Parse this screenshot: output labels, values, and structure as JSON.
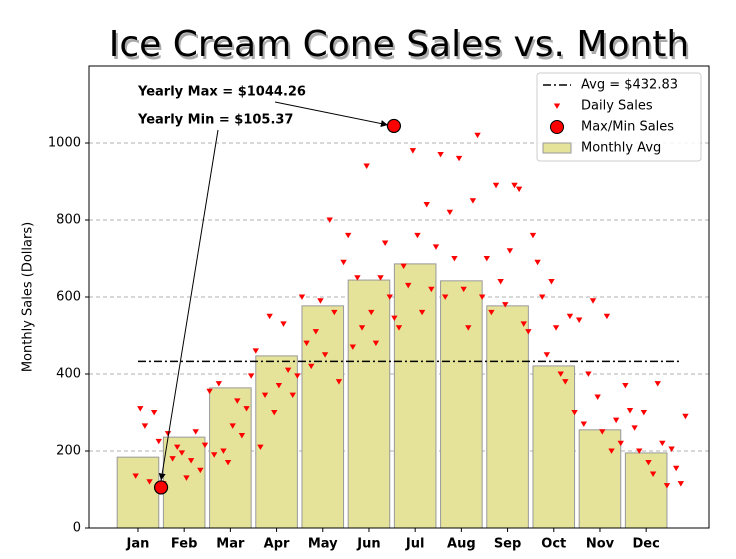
{
  "chart_data": {
    "type": "bar",
    "title": "Ice Cream Cone Sales vs. Month",
    "y_label": "Monthly Sales (Dollars)",
    "xlim": [
      -0.06,
      13.36
    ],
    "xticks": [
      {
        "value": 1,
        "label": "Jan"
      },
      {
        "value": 2,
        "label": "Feb"
      },
      {
        "value": 3,
        "label": "Mar"
      },
      {
        "value": 4,
        "label": "Apr"
      },
      {
        "value": 5,
        "label": "May"
      },
      {
        "value": 6,
        "label": "Jun"
      },
      {
        "value": 7,
        "label": "Jul"
      },
      {
        "value": 8,
        "label": "Aug"
      },
      {
        "value": 9,
        "label": "Sep"
      },
      {
        "value": 10,
        "label": "Oct"
      },
      {
        "value": 11,
        "label": "Nov"
      },
      {
        "value": 12,
        "label": "Dec"
      }
    ],
    "ylim": [
      0,
      1200
    ],
    "yticks": [
      0,
      200,
      400,
      600,
      800,
      1000
    ],
    "grid": true,
    "legend": "upper right",
    "series": [
      {
        "name": "Monthly Avg",
        "color": "#e5e39a",
        "x": [
          1,
          2,
          3,
          4,
          5,
          6,
          7,
          8,
          9,
          10,
          11,
          12
        ],
        "values": [
          184,
          236,
          364,
          447,
          577,
          644,
          686,
          642,
          577,
          421,
          255,
          195
        ]
      }
    ],
    "average": {
      "name": "Avg = $432.83",
      "value": 432.83,
      "x": [
        1,
        12.73
      ]
    },
    "daily": {
      "name": "Daily Sales",
      "color": "#ff0000",
      "x": [
        0.95,
        1.05,
        1.15,
        1.25,
        1.35,
        1.45,
        1.55,
        1.65,
        1.75,
        1.85,
        1.95,
        2.05,
        2.15,
        2.25,
        2.35,
        2.45,
        2.55,
        2.65,
        2.75,
        2.85,
        2.95,
        3.05,
        3.15,
        3.25,
        3.35,
        3.45,
        3.55,
        3.65,
        3.75,
        3.85,
        3.95,
        4.05,
        4.15,
        4.25,
        4.35,
        4.45,
        4.55,
        4.65,
        4.75,
        4.85,
        4.95,
        5.05,
        5.15,
        5.25,
        5.35,
        5.45,
        5.55,
        5.65,
        5.75,
        5.85,
        5.95,
        6.05,
        6.15,
        6.25,
        6.35,
        6.45,
        6.55,
        6.65,
        6.75,
        6.85,
        6.95,
        7.05,
        7.15,
        7.25,
        7.35,
        7.45,
        7.55,
        7.65,
        7.75,
        7.85,
        7.95,
        8.05,
        8.15,
        8.25,
        8.35,
        8.45,
        8.55,
        8.65,
        8.75,
        8.85,
        8.95,
        9.05,
        9.15,
        9.25,
        9.35,
        9.45,
        9.55,
        9.65,
        9.75,
        9.85,
        9.95,
        10.05,
        10.15,
        10.25,
        10.35,
        10.45,
        10.55,
        10.65,
        10.75,
        10.85,
        10.95,
        11.05,
        11.15,
        11.25,
        11.35,
        11.45,
        11.55,
        11.65,
        11.75,
        11.85,
        11.95,
        12.05,
        12.15,
        12.25,
        12.35,
        12.45,
        12.55,
        12.65,
        12.75,
        12.85
      ],
      "values": [
        135,
        310,
        265,
        120,
        300,
        225,
        115,
        245,
        180,
        210,
        195,
        130,
        175,
        250,
        150,
        215,
        355,
        190,
        375,
        200,
        170,
        265,
        330,
        240,
        310,
        395,
        460,
        210,
        345,
        550,
        300,
        370,
        530,
        410,
        345,
        395,
        600,
        480,
        420,
        510,
        590,
        450,
        800,
        560,
        380,
        690,
        760,
        470,
        650,
        520,
        940,
        560,
        480,
        650,
        740,
        600,
        545,
        520,
        680,
        630,
        980,
        760,
        560,
        840,
        620,
        730,
        970,
        600,
        820,
        700,
        960,
        620,
        520,
        850,
        1020,
        600,
        700,
        560,
        890,
        640,
        580,
        720,
        890,
        880,
        530,
        510,
        760,
        690,
        600,
        450,
        640,
        520,
        400,
        380,
        550,
        300,
        540,
        270,
        400,
        590,
        340,
        250,
        550,
        200,
        280,
        220,
        370,
        305,
        260,
        200,
        300,
        170,
        140,
        375,
        220,
        110,
        205,
        155,
        115,
        290
      ]
    },
    "extremes": {
      "name": "Max/Min Sales",
      "color": "#ff0000",
      "x": [
        6.54,
        1.5
      ],
      "values": [
        1044.26,
        105.37
      ]
    },
    "annotations": [
      "Yearly Max = $1044.26",
      "Yearly Min = $105.37"
    ]
  }
}
